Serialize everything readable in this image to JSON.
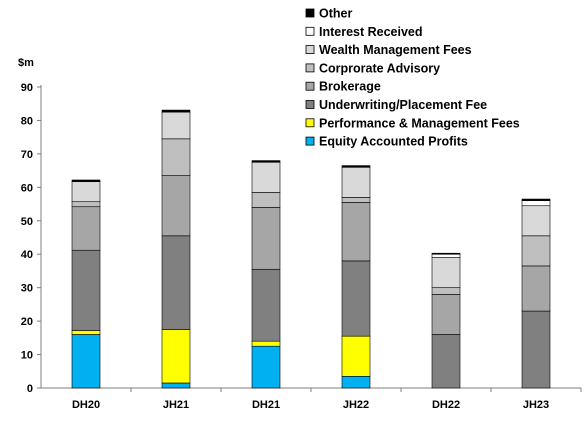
{
  "chart_data": {
    "type": "bar",
    "stacked": true,
    "unit_label": "$m",
    "categories": [
      "DH20",
      "JH21",
      "DH21",
      "JH22",
      "DH22",
      "JH23"
    ],
    "ylim": [
      0,
      90
    ],
    "yticks": [
      0,
      10,
      20,
      30,
      40,
      50,
      60,
      70,
      80,
      90
    ],
    "grid": false,
    "legend_position": "top-right",
    "series": [
      {
        "name": "Equity Accounted Profits",
        "color": "#00b0f0",
        "values": [
          16,
          1.5,
          12.5,
          3.5,
          0,
          0
        ]
      },
      {
        "name": "Performance & Management Fees",
        "color": "#ffff00",
        "values": [
          1.2,
          16,
          1.5,
          12,
          0,
          0
        ]
      },
      {
        "name": "Underwriting/Placement Fee",
        "color": "#808080",
        "values": [
          24,
          28,
          21.5,
          22.5,
          16,
          23
        ]
      },
      {
        "name": "Brokerage",
        "color": "#a6a6a6",
        "values": [
          13,
          18,
          18.5,
          17.5,
          12,
          13.5
        ]
      },
      {
        "name": "Corprorate Advisory",
        "color": "#bfbfbf",
        "values": [
          1.5,
          11,
          4.5,
          1.5,
          2,
          9
        ]
      },
      {
        "name": "Wealth Management Fees",
        "color": "#d9d9d9",
        "values": [
          6,
          8,
          9,
          9,
          9,
          9
        ]
      },
      {
        "name": "Interest Received",
        "color": "#ffffff",
        "values": [
          0,
          0,
          0,
          0,
          1,
          1.5
        ]
      },
      {
        "name": "Other",
        "color": "#000000",
        "values": [
          0.5,
          0.6,
          0.5,
          0.5,
          0.3,
          0.5
        ]
      }
    ]
  }
}
